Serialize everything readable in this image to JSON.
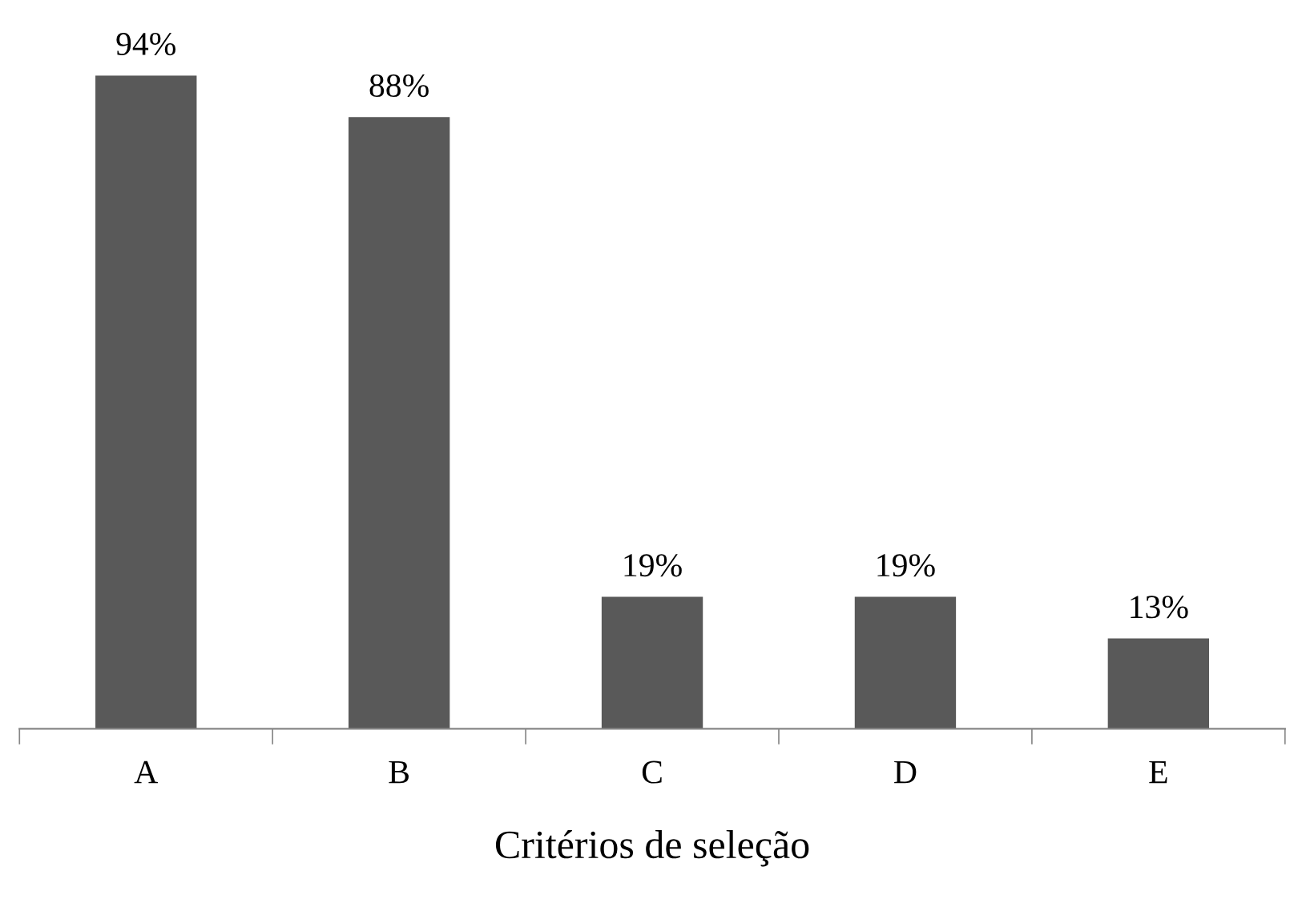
{
  "chart_data": {
    "type": "bar",
    "xlabel": "Critérios de seleção",
    "categories": [
      "A",
      "B",
      "C",
      "D",
      "E"
    ],
    "values": [
      94,
      88,
      19,
      19,
      13
    ],
    "value_labels": [
      "94%",
      "88%",
      "19%",
      "19%",
      "13%"
    ],
    "color": "#595959",
    "grid": false,
    "legend": false
  }
}
